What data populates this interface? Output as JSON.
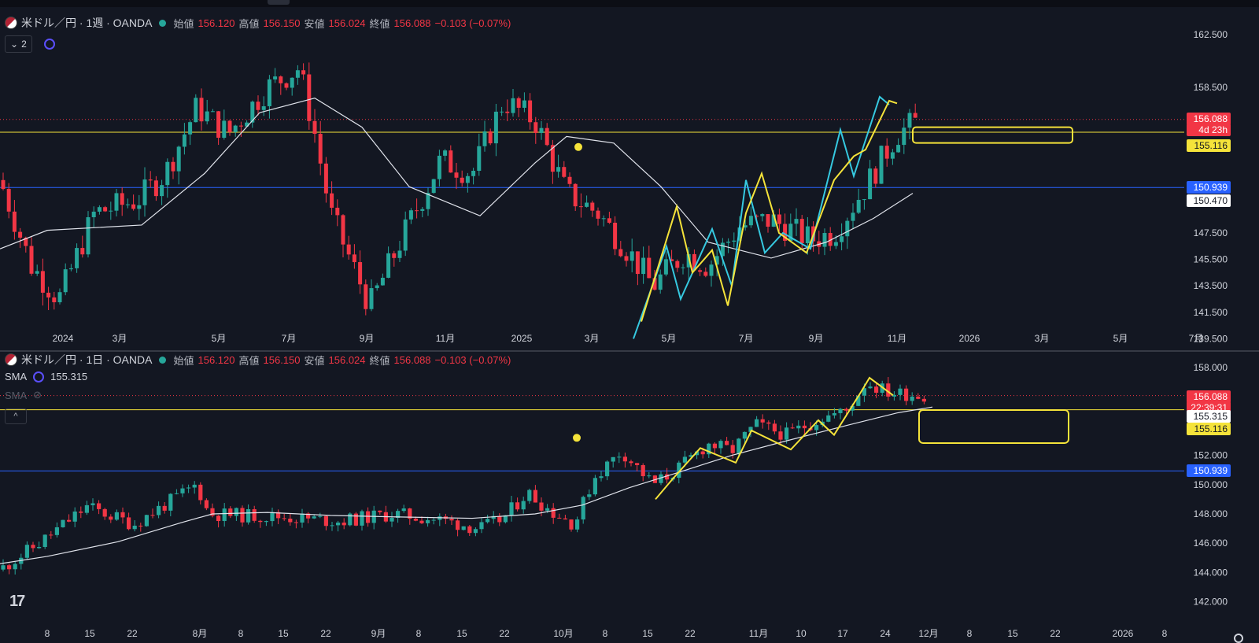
{
  "top_pane": {
    "symbol": "米ドル／円 · 1週 · OANDA",
    "open_label": "始値",
    "open": "156.120",
    "high_label": "高値",
    "high": "156.150",
    "low_label": "安値",
    "low": "156.024",
    "close_label": "終値",
    "close": "156.088",
    "change": "−0.103 (−0.07%)",
    "indicator_count": "2",
    "price_axis": [
      "162.500",
      "158.500",
      "147.500",
      "145.500",
      "143.500",
      "141.500",
      "139.500"
    ],
    "time_axis": [
      "2024",
      "3月",
      "5月",
      "7月",
      "9月",
      "11月",
      "2025",
      "3月",
      "5月",
      "7月",
      "9月",
      "11月",
      "2026",
      "3月",
      "5月",
      "7月"
    ],
    "price_labels": {
      "last": "156.088",
      "countdown": "4d 23h",
      "yellow": "155.116",
      "blue": "150.939",
      "sma": "150.470"
    }
  },
  "bottom_pane": {
    "symbol": "米ドル／円 · 1日 · OANDA",
    "open_label": "始値",
    "open": "156.120",
    "high_label": "高値",
    "high": "156.150",
    "low_label": "安値",
    "low": "156.024",
    "close_label": "終値",
    "close": "156.088",
    "change": "−0.103 (−0.07%)",
    "sma_label": "SMA",
    "sma_value": "155.315",
    "sma2_label": "SMA",
    "collapse_label": "^",
    "price_axis": [
      "158.000",
      "152.000",
      "150.000",
      "148.000",
      "146.000",
      "144.000",
      "142.000"
    ],
    "time_axis": [
      "8",
      "15",
      "22",
      "8月",
      "8",
      "15",
      "22",
      "9月",
      "8",
      "15",
      "22",
      "10月",
      "8",
      "15",
      "22",
      "11月",
      "10",
      "17",
      "24",
      "12月",
      "8",
      "15",
      "22",
      "2026",
      "8"
    ],
    "price_labels": {
      "last": "156.088",
      "countdown": "22:39:31",
      "sma": "155.315",
      "yellow": "155.116",
      "blue": "150.939"
    }
  },
  "colors": {
    "up": "#26a69a",
    "down": "#f23645",
    "yellow": "#f5e33a",
    "cyan": "#36c9e0",
    "blue": "#2962ff",
    "bg": "#131722"
  },
  "logo_text": "17"
}
